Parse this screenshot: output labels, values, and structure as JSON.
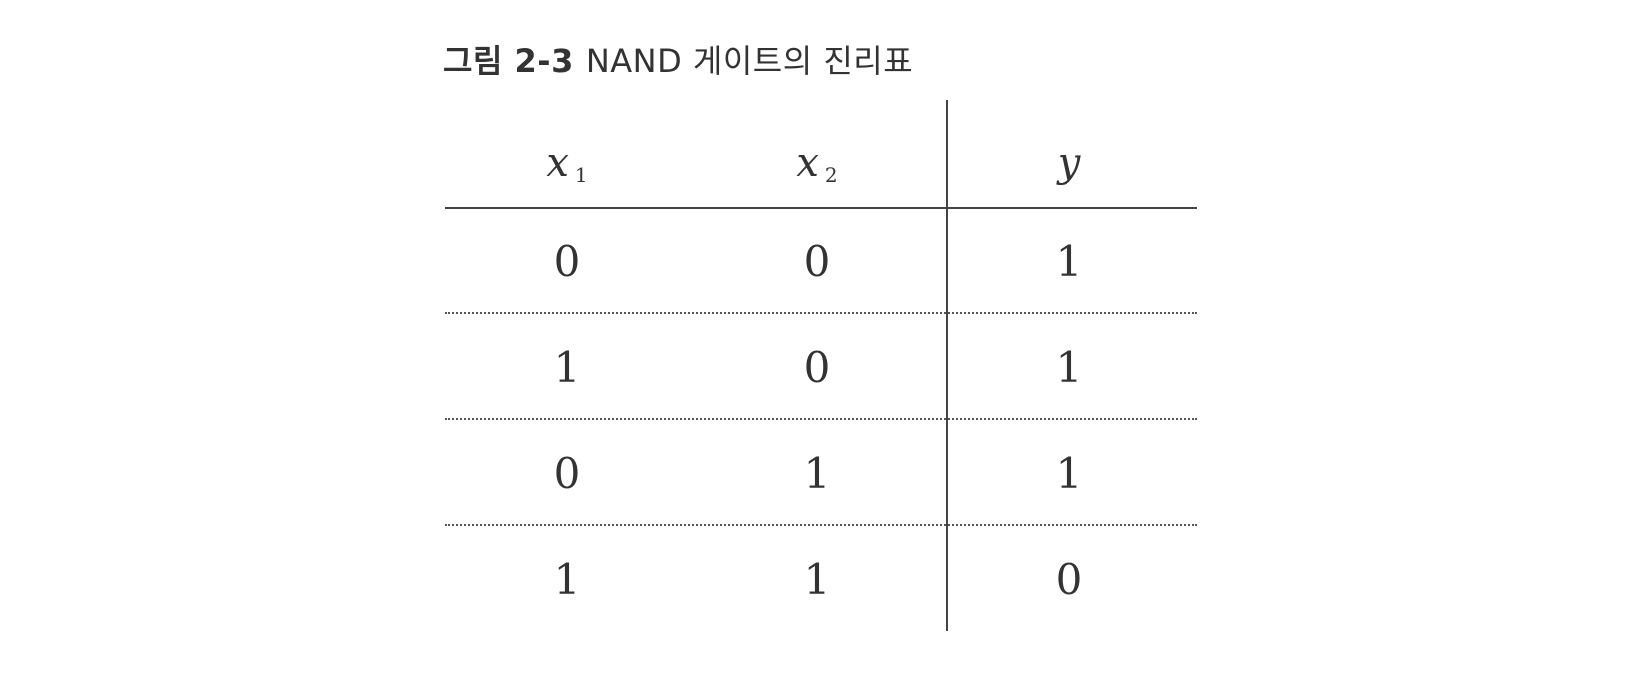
{
  "figure": {
    "number": "그림 2-3",
    "title": "NAND 게이트의 진리표"
  },
  "table": {
    "headers": [
      {
        "base": "x",
        "sub": "1"
      },
      {
        "base": "x",
        "sub": "2"
      },
      {
        "base": "y",
        "sub": ""
      }
    ],
    "rows": [
      [
        "0",
        "0",
        "1"
      ],
      [
        "1",
        "0",
        "1"
      ],
      [
        "0",
        "1",
        "1"
      ],
      [
        "1",
        "1",
        "0"
      ]
    ]
  }
}
